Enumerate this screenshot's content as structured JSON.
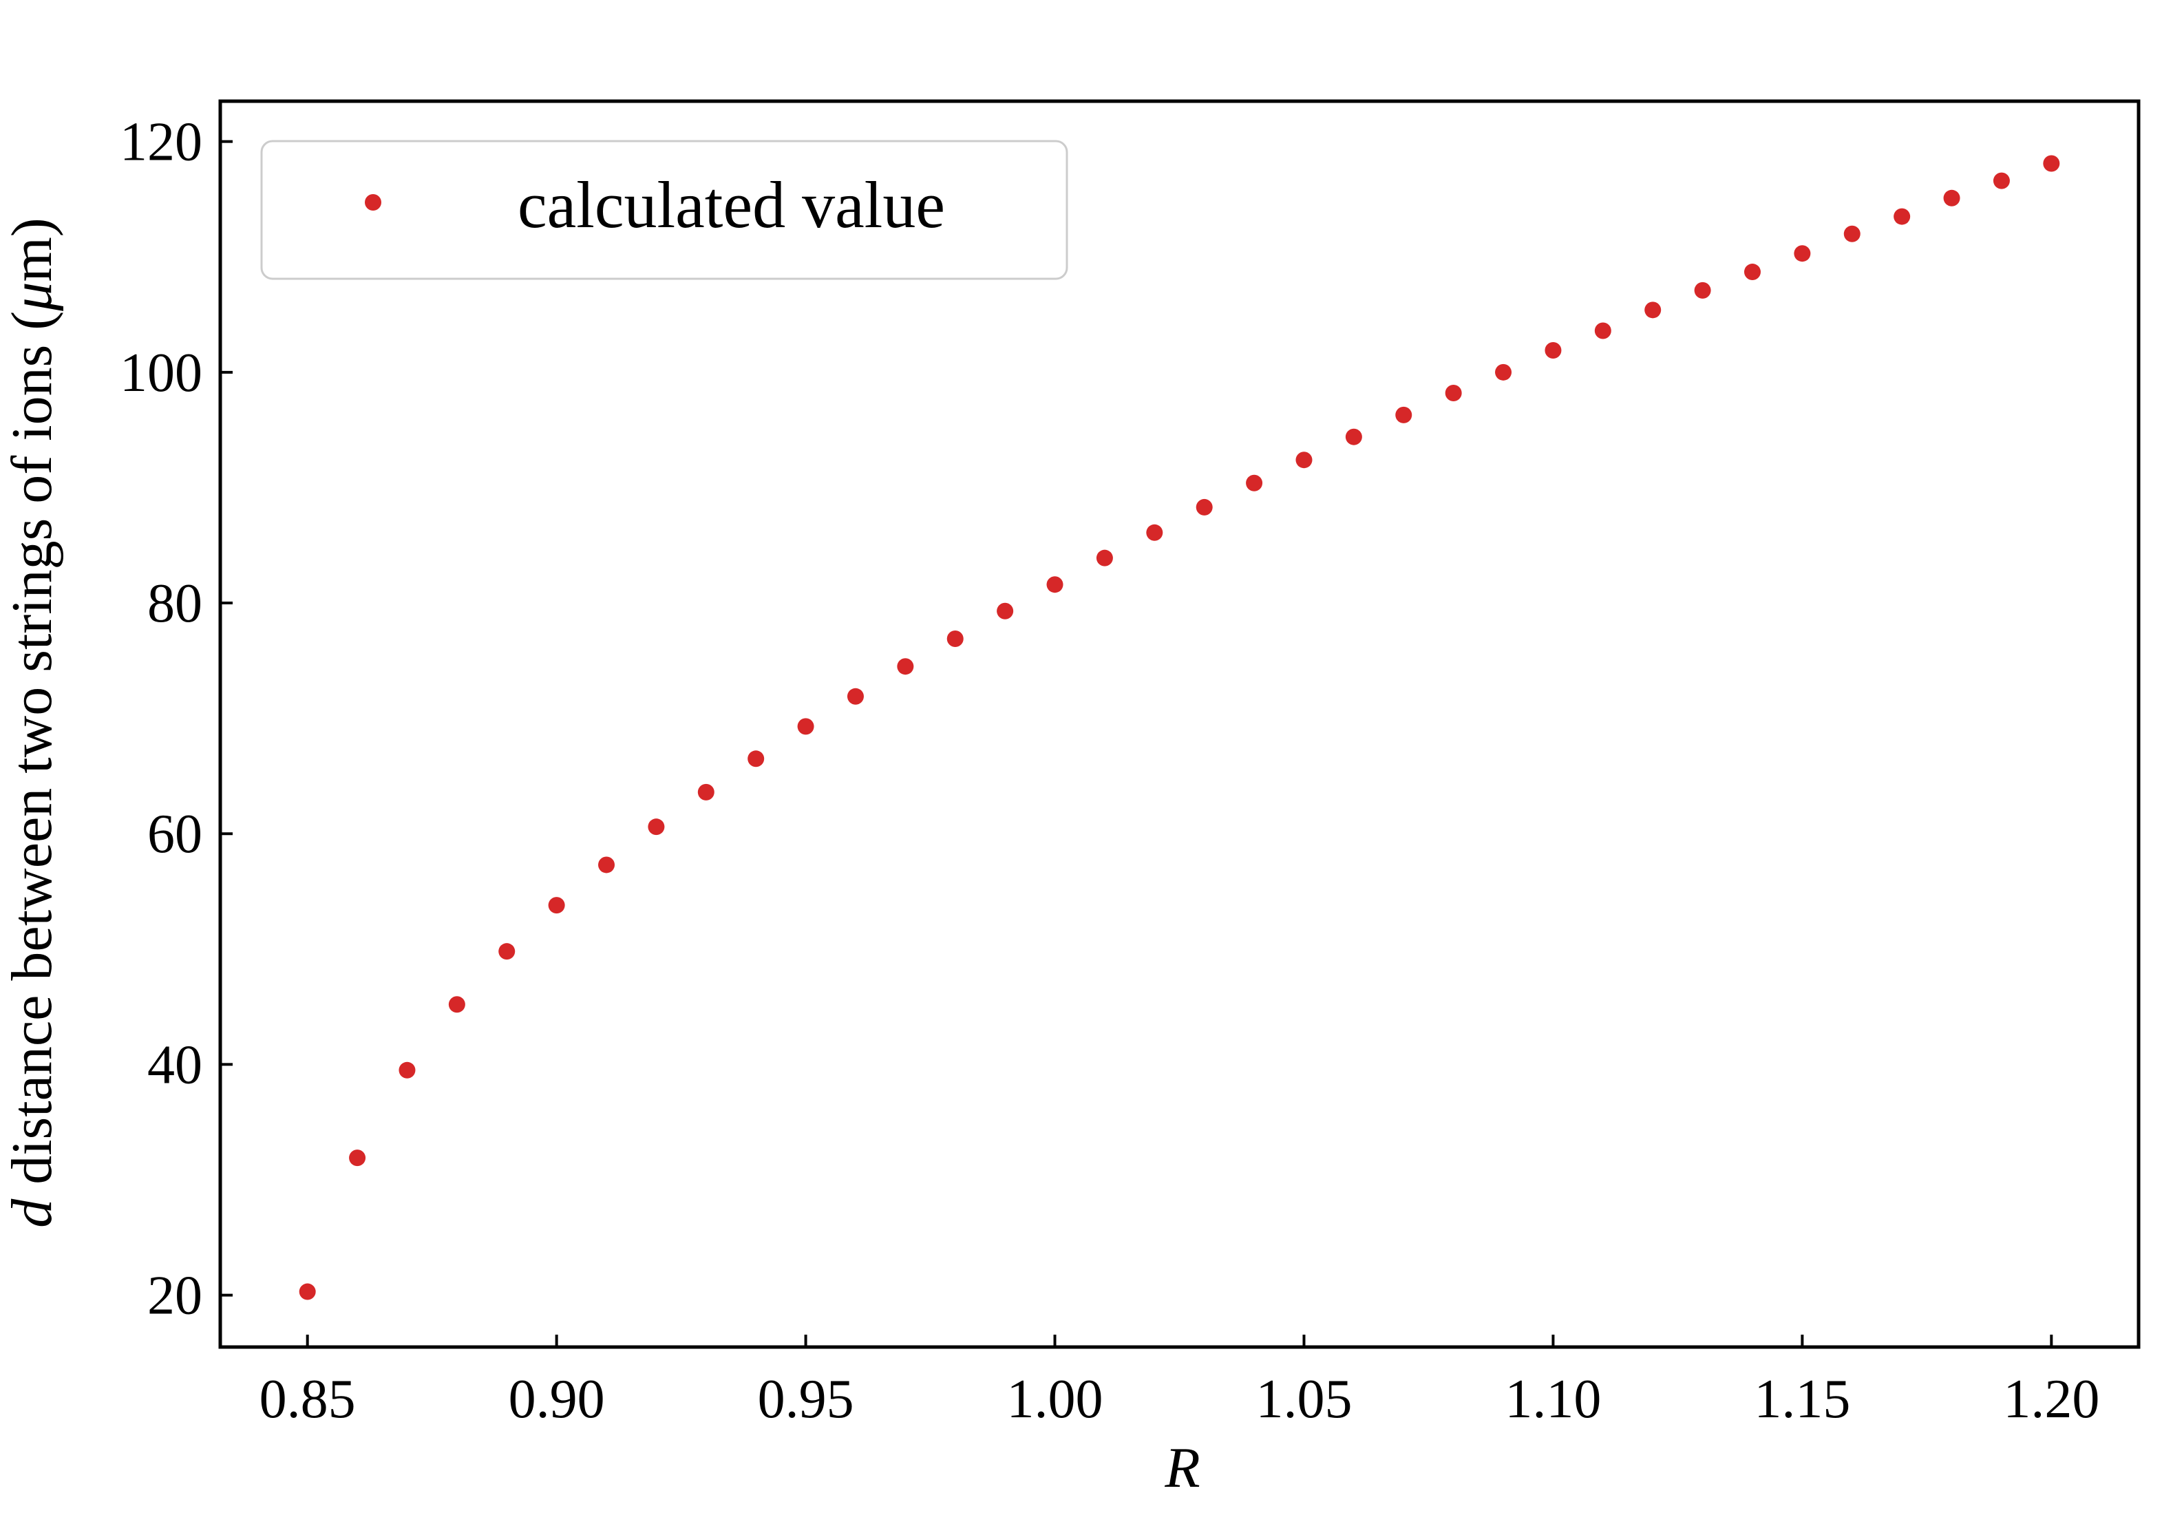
{
  "chart_data": {
    "type": "scatter",
    "title": "",
    "xlabel": "R",
    "ylabel_prefix": "d",
    "ylabel_main": " distance between two strings of ions (",
    "ylabel_mu": "μ",
    "ylabel_suffix": "m)",
    "xlim": [
      0.8325,
      1.2175
    ],
    "ylim": [
      15.5,
      123.5
    ],
    "xticks": [
      0.85,
      0.9,
      0.95,
      1.0,
      1.05,
      1.1,
      1.15,
      1.2
    ],
    "xtick_labels": [
      "0.85",
      "0.90",
      "0.95",
      "1.00",
      "1.05",
      "1.10",
      "1.15",
      "1.20"
    ],
    "yticks": [
      20,
      40,
      60,
      80,
      100,
      120
    ],
    "ytick_labels": [
      "20",
      "40",
      "60",
      "80",
      "100",
      "120"
    ],
    "grid": false,
    "legend_position": "top-left",
    "colors": {
      "marker": "#d62728",
      "axes": "#000000",
      "legend_border": "#cccccc"
    },
    "series": [
      {
        "name": "calculated value",
        "x": [
          0.85,
          0.86,
          0.87,
          0.88,
          0.89,
          0.9,
          0.91,
          0.92,
          0.93,
          0.94,
          0.95,
          0.96,
          0.97,
          0.98,
          0.99,
          1.0,
          1.01,
          1.02,
          1.03,
          1.04,
          1.05,
          1.06,
          1.07,
          1.08,
          1.09,
          1.1,
          1.11,
          1.12,
          1.13,
          1.14,
          1.15,
          1.16,
          1.17,
          1.18,
          1.19,
          1.2
        ],
        "y": [
          20.3,
          31.9,
          39.5,
          45.2,
          49.8,
          53.8,
          57.3,
          60.6,
          63.6,
          66.5,
          69.3,
          71.9,
          74.5,
          76.9,
          79.3,
          81.6,
          83.9,
          86.1,
          88.3,
          90.4,
          92.4,
          94.4,
          96.3,
          98.2,
          100.0,
          101.9,
          103.6,
          105.4,
          107.1,
          108.7,
          110.3,
          112.0,
          113.5,
          115.1,
          116.6,
          118.1
        ]
      }
    ]
  }
}
